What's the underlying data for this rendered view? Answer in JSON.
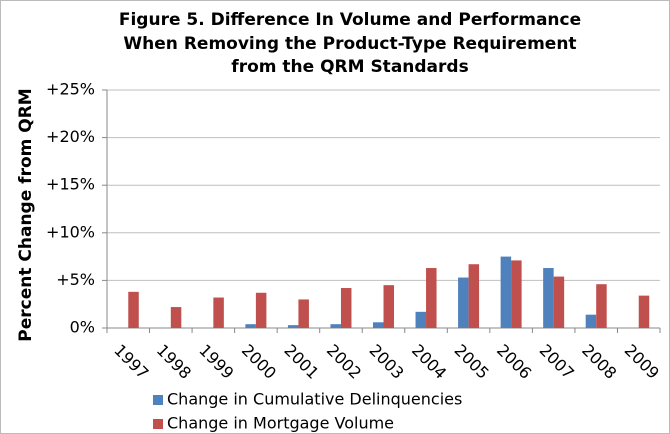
{
  "chart_data": {
    "type": "bar",
    "title": [
      "Figure 5. Difference In Volume and Performance",
      "When Removing the Product-Type Requirement",
      "from the QRM Standards"
    ],
    "y_label": "Percent Change from QRM",
    "categories": [
      "1997",
      "1998",
      "1999",
      "2000",
      "2001",
      "2002",
      "2003",
      "2004",
      "2005",
      "2006",
      "2007",
      "2008",
      "2009"
    ],
    "series": [
      {
        "name": "Change in Cumulative Delinquencies",
        "color": "#4f81bd",
        "values": [
          0,
          0,
          0,
          0.4,
          0.3,
          0.4,
          0.6,
          1.7,
          5.3,
          7.5,
          6.3,
          1.4,
          0
        ]
      },
      {
        "name": "Change in Mortgage Volume",
        "color": "#c0504d",
        "values": [
          3.8,
          2.2,
          3.2,
          3.7,
          3.0,
          4.2,
          4.5,
          6.3,
          6.7,
          7.1,
          5.4,
          4.6,
          3.4
        ]
      }
    ],
    "ylim": [
      0,
      25
    ],
    "yticks": [
      {
        "value": 0,
        "label": "0%"
      },
      {
        "value": 5,
        "label": "+5%"
      },
      {
        "value": 10,
        "label": "+10%"
      },
      {
        "value": 15,
        "label": "+15%"
      },
      {
        "value": 20,
        "label": "+20%"
      },
      {
        "value": 25,
        "label": "+25%"
      }
    ],
    "grid": true,
    "legend": "bottom"
  }
}
